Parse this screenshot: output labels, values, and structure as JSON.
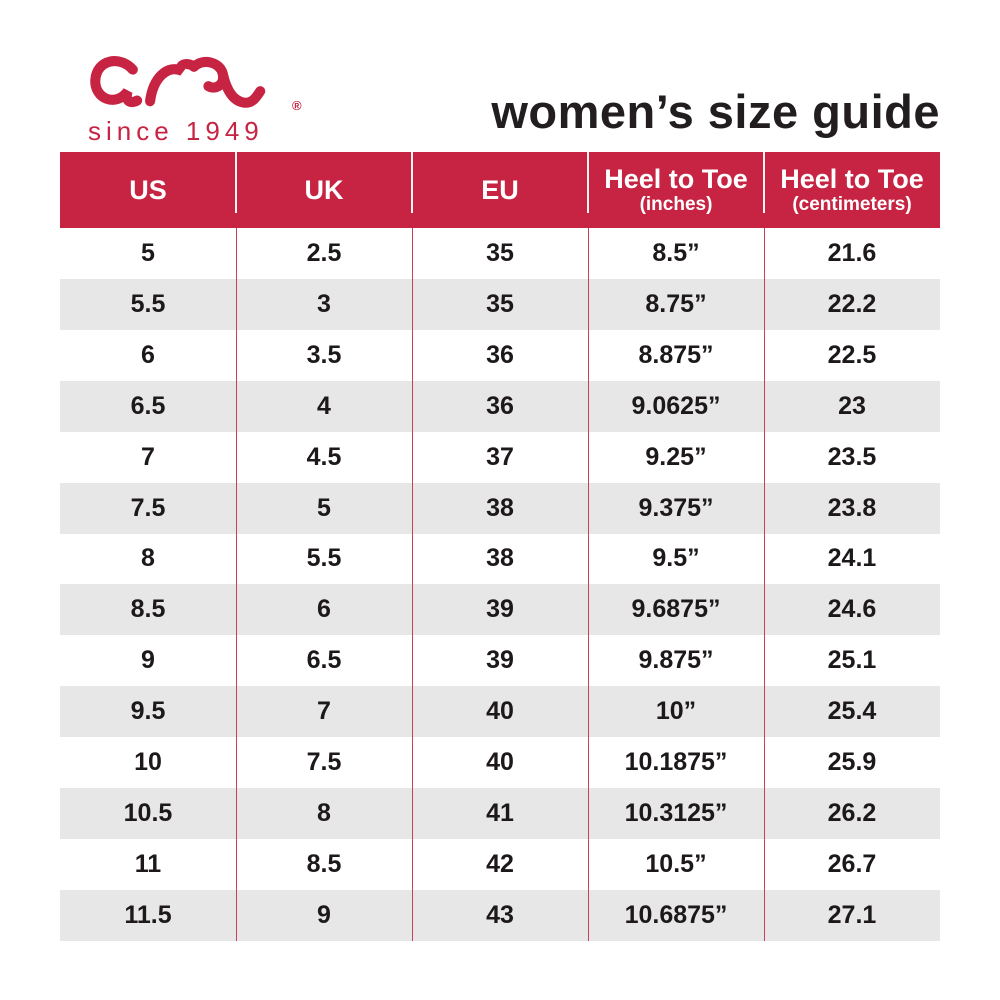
{
  "brand": {
    "logo_text": "ara",
    "registered_mark": "®",
    "tagline": "since 1949",
    "brand_color": "#C72443"
  },
  "page": {
    "title": "women’s size guide"
  },
  "table": {
    "header_bg": "#C72443",
    "alt_row_bg": "#E7E7E7",
    "columns": [
      {
        "label": "US",
        "sublabel": ""
      },
      {
        "label": "UK",
        "sublabel": ""
      },
      {
        "label": "EU",
        "sublabel": ""
      },
      {
        "label": "Heel to Toe",
        "sublabel": "(inches)"
      },
      {
        "label": "Heel to Toe",
        "sublabel": "(centimeters)"
      }
    ],
    "rows": [
      [
        "5",
        "2.5",
        "35",
        "8.5”",
        "21.6"
      ],
      [
        "5.5",
        "3",
        "35",
        "8.75”",
        "22.2"
      ],
      [
        "6",
        "3.5",
        "36",
        "8.875”",
        "22.5"
      ],
      [
        "6.5",
        "4",
        "36",
        "9.0625”",
        "23"
      ],
      [
        "7",
        "4.5",
        "37",
        "9.25”",
        "23.5"
      ],
      [
        "7.5",
        "5",
        "38",
        "9.375”",
        "23.8"
      ],
      [
        "8",
        "5.5",
        "38",
        "9.5”",
        "24.1"
      ],
      [
        "8.5",
        "6",
        "39",
        "9.6875”",
        "24.6"
      ],
      [
        "9",
        "6.5",
        "39",
        "9.875”",
        "25.1"
      ],
      [
        "9.5",
        "7",
        "40",
        "10”",
        "25.4"
      ],
      [
        "10",
        "7.5",
        "40",
        "10.1875”",
        "25.9"
      ],
      [
        "10.5",
        "8",
        "41",
        "10.3125”",
        "26.2"
      ],
      [
        "11",
        "8.5",
        "42",
        "10.5”",
        "26.7"
      ],
      [
        "11.5",
        "9",
        "43",
        "10.6875”",
        "27.1"
      ]
    ]
  }
}
